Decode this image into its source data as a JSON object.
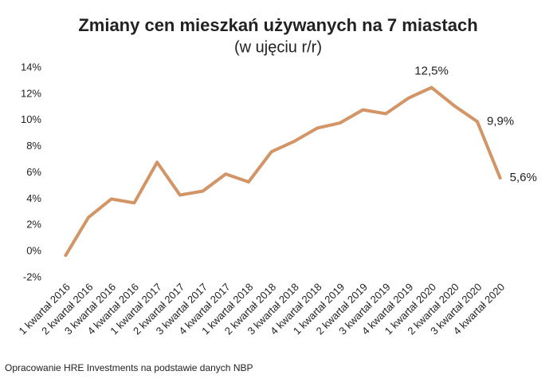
{
  "chart_data": {
    "type": "line",
    "title": "Zmiany cen mieszkań używanych na 7 miastach",
    "subtitle": "(w ujęciu r/r)",
    "categories": [
      "1 kwartał 2016",
      "2 kwartał 2016",
      "3 kwartał 2016",
      "4 kwartał 2016",
      "1 kwartał 2017",
      "2 kwartał 2017",
      "3 kwartał 2017",
      "4 kwartał 2017",
      "1 kwartał 2018",
      "2 kwartał 2018",
      "3 kwartał 2018",
      "4 kwartał 2018",
      "1 kwartał 2019",
      "2 kwartał 2019",
      "3 kwartał 2019",
      "4 kwartał 2019",
      "1 kwartał 2020",
      "2 kwartał 2020",
      "3 kwartał 2020",
      "4 kwartał 2020"
    ],
    "values": [
      -0.3,
      2.6,
      4.0,
      3.7,
      6.8,
      4.3,
      4.6,
      5.9,
      5.3,
      7.6,
      8.4,
      9.4,
      9.8,
      10.8,
      10.5,
      11.7,
      12.5,
      11.1,
      9.9,
      5.6
    ],
    "value_labels": [
      null,
      null,
      null,
      null,
      null,
      null,
      null,
      null,
      null,
      null,
      null,
      null,
      null,
      null,
      null,
      null,
      "12,5%",
      null,
      "9,9%",
      "5,6%"
    ],
    "color": "#d39466",
    "ylim": [
      -2,
      14
    ],
    "yticks": [
      {
        "value": -2,
        "label": "-2%"
      },
      {
        "value": 0,
        "label": "0%"
      },
      {
        "value": 2,
        "label": "2%"
      },
      {
        "value": 4,
        "label": "4%"
      },
      {
        "value": 6,
        "label": "6%"
      },
      {
        "value": 8,
        "label": "8%"
      },
      {
        "value": 10,
        "label": "10%"
      },
      {
        "value": 12,
        "label": "12%"
      },
      {
        "value": 14,
        "label": "14%"
      }
    ],
    "grid": false,
    "source": "Opracowanie HRE Investments na podstawie danych NBP"
  }
}
